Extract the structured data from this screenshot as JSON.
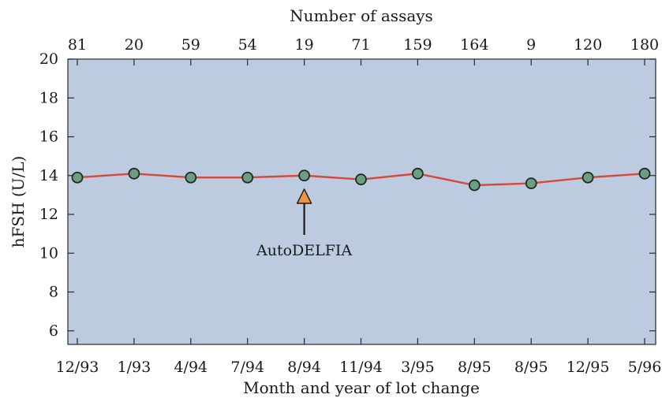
{
  "chart_data": {
    "type": "line",
    "title": "",
    "xlabel": "Month and year of lot change",
    "x2label": "Number of assays",
    "ylabel": "hFSH (U/L)",
    "ylim": [
      5.3,
      20
    ],
    "yticks": [
      6,
      8,
      10,
      12,
      14,
      16,
      18,
      20
    ],
    "categories": [
      "12/93",
      "1/93",
      "4/94",
      "7/94",
      "8/94",
      "11/94",
      "3/95",
      "8/95",
      "8/95",
      "12/95",
      "5/96"
    ],
    "top_categories": [
      "81",
      "20",
      "59",
      "54",
      "19",
      "71",
      "159",
      "164",
      "9",
      "120",
      "180"
    ],
    "series": [
      {
        "values": [
          13.9,
          14.1,
          13.9,
          13.9,
          14.0,
          13.8,
          14.1,
          13.5,
          13.6,
          13.9,
          14.1
        ]
      }
    ],
    "annotations": [
      {
        "text": "AutoDELFIA",
        "category_index": 4,
        "arrow_tip_y": 13.3
      }
    ],
    "grid": false,
    "colors": {
      "plot_bg": "#bccbe0",
      "line": "#d8483a",
      "marker_fill": "#6e9e82",
      "marker_stroke": "#1e2a22",
      "arrow_fill": "#e8944a"
    }
  }
}
